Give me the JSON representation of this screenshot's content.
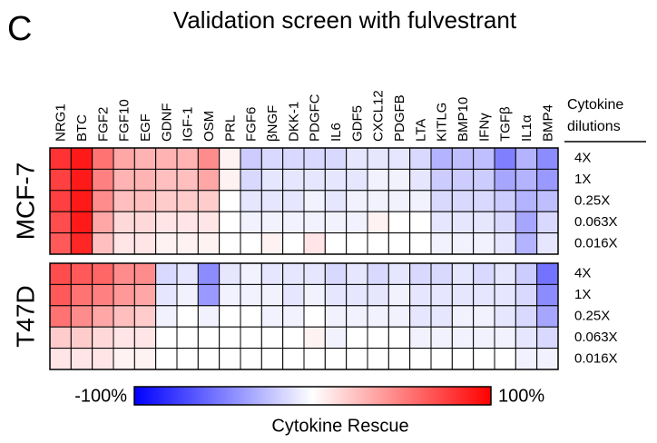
{
  "panel_label": "C",
  "chart_data": {
    "type": "heatmap",
    "title": "Validation screen with fulvestrant",
    "columns": [
      {
        "name": "NRG1",
        "color": "#e8101a"
      },
      {
        "name": "BTC",
        "color": "#e8101a"
      },
      {
        "name": "FGF2",
        "color": "#e8101a"
      },
      {
        "name": "FGF10",
        "color": "#f4a0a0"
      },
      {
        "name": "EGF",
        "color": "#f4a0a0"
      },
      {
        "name": "GDNF",
        "color": "#e8101a"
      },
      {
        "name": "IGF-1",
        "color": "#000000"
      },
      {
        "name": "OSM",
        "color": "#e8101a"
      },
      {
        "name": "PRL",
        "color": "#f4a0a0"
      },
      {
        "name": "FGF6",
        "color": "#000000"
      },
      {
        "name": "βNGF",
        "color": "#000000"
      },
      {
        "name": "DKK-1",
        "color": "#000000"
      },
      {
        "name": "PDGFC",
        "color": "#000000"
      },
      {
        "name": "IL6",
        "color": "#e8101a"
      },
      {
        "name": "GDF5",
        "color": "#8ecbf0"
      },
      {
        "name": "CXCL12",
        "color": "#000000"
      },
      {
        "name": "PDGFB",
        "color": "#000000"
      },
      {
        "name": "LTA",
        "color": "#e8101a"
      },
      {
        "name": "KITLG",
        "color": "#1c1ccc"
      },
      {
        "name": "BMP10",
        "color": "#e8101a"
      },
      {
        "name": "IFNγ",
        "color": "#8ecbf0"
      },
      {
        "name": "TGFβ",
        "color": "#1c1ccc"
      },
      {
        "name": "IL1α",
        "color": "#e8101a"
      },
      {
        "name": "BMP4",
        "color": "#1c1ccc"
      }
    ],
    "row_header": [
      "Cytokine",
      "dilutions"
    ],
    "rows": [
      "4X",
      "1X",
      "0.25X",
      "0.063X",
      "0.016X"
    ],
    "panels": [
      {
        "name": "MCF-7",
        "values": [
          [
            80,
            90,
            55,
            35,
            30,
            30,
            30,
            45,
            5,
            -20,
            -15,
            -15,
            -15,
            -15,
            -10,
            -10,
            -10,
            -15,
            -30,
            -25,
            -25,
            -50,
            -30,
            -45
          ],
          [
            75,
            90,
            50,
            30,
            30,
            25,
            25,
            35,
            5,
            -15,
            -10,
            -10,
            -10,
            -10,
            -10,
            -5,
            -5,
            -10,
            -20,
            -20,
            -20,
            -35,
            -30,
            -40
          ],
          [
            75,
            90,
            45,
            25,
            25,
            20,
            20,
            20,
            0,
            -10,
            -10,
            -10,
            -5,
            -10,
            -5,
            -5,
            -5,
            -5,
            -15,
            -15,
            -15,
            -20,
            -30,
            -25
          ],
          [
            70,
            90,
            35,
            15,
            15,
            10,
            10,
            10,
            0,
            -5,
            -5,
            -5,
            -5,
            -5,
            -5,
            5,
            0,
            0,
            -10,
            -10,
            -10,
            -15,
            -35,
            -15
          ],
          [
            65,
            85,
            25,
            10,
            10,
            5,
            5,
            5,
            0,
            0,
            5,
            0,
            10,
            0,
            0,
            0,
            0,
            0,
            -5,
            -5,
            -5,
            -10,
            -30,
            -10
          ]
        ]
      },
      {
        "name": "T47D",
        "values": [
          [
            70,
            65,
            60,
            45,
            45,
            -15,
            -10,
            -45,
            -10,
            -5,
            -10,
            -10,
            -10,
            -15,
            -10,
            -15,
            -10,
            -15,
            -15,
            -10,
            -15,
            -10,
            -20,
            -55
          ],
          [
            65,
            55,
            50,
            40,
            35,
            -10,
            -5,
            -40,
            -5,
            -5,
            -5,
            -10,
            -5,
            -10,
            -10,
            -10,
            -5,
            -10,
            -10,
            -10,
            -10,
            -10,
            -15,
            -45
          ],
          [
            55,
            45,
            35,
            25,
            20,
            -5,
            0,
            -5,
            0,
            0,
            -5,
            -5,
            0,
            -5,
            -5,
            -5,
            -5,
            -10,
            -10,
            -5,
            -5,
            -10,
            -15,
            -35
          ],
          [
            20,
            20,
            15,
            10,
            10,
            0,
            0,
            0,
            0,
            0,
            0,
            0,
            5,
            -5,
            0,
            0,
            0,
            -5,
            -5,
            -5,
            -5,
            -5,
            -10,
            -15
          ],
          [
            10,
            10,
            10,
            5,
            5,
            0,
            0,
            0,
            0,
            0,
            0,
            0,
            0,
            0,
            0,
            0,
            0,
            0,
            0,
            0,
            0,
            0,
            -5,
            -5
          ]
        ]
      }
    ],
    "zlim": [
      -100,
      100
    ],
    "colormap": [
      "#0000ff",
      "#ffffff",
      "#ff0000"
    ],
    "colorbar": {
      "label": "Cytokine Rescue",
      "ticks": [
        {
          "value": -100,
          "label": "-100%"
        },
        {
          "value": 100,
          "label": "100%"
        }
      ]
    }
  }
}
